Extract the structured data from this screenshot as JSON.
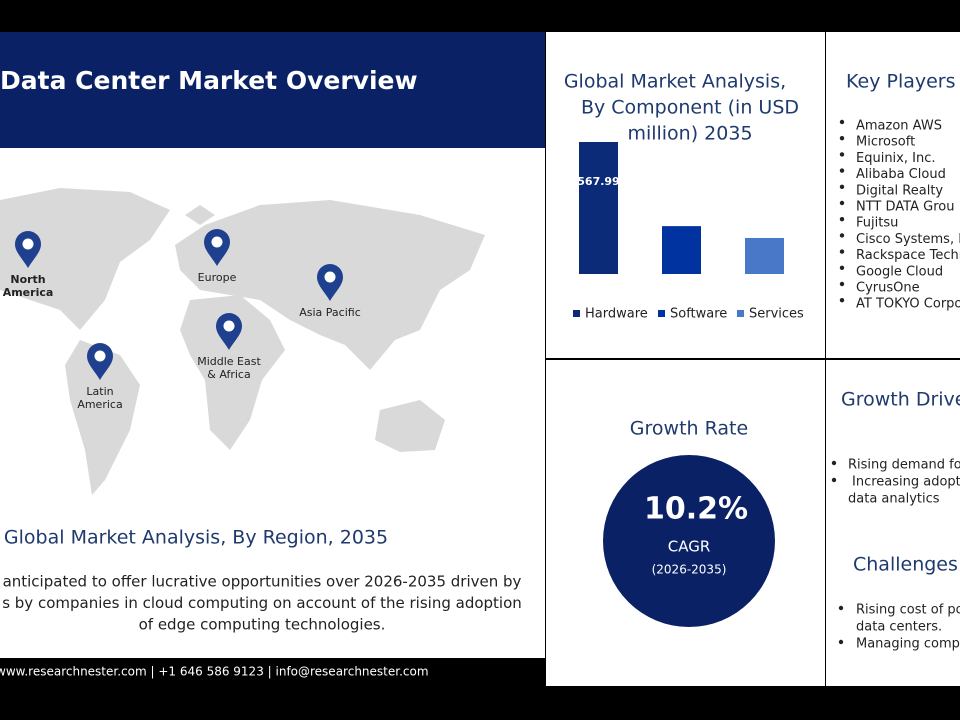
{
  "header": {
    "title": "Data Center Market Overview"
  },
  "regions": {
    "title": "Global Market Analysis, By Region, 2035",
    "pins": [
      {
        "label": [
          "North",
          "America"
        ]
      },
      {
        "label": [
          "Europe"
        ]
      },
      {
        "label": [
          "Asia Pacific"
        ]
      },
      {
        "label": [
          "Middle East",
          "& Africa"
        ]
      },
      {
        "label": [
          "Latin",
          "America"
        ]
      }
    ],
    "paragraph": [
      "anticipated to offer lucrative opportunities over 2026-2035 driven by",
      "s by companies in cloud computing on account of the rising adoption",
      "of edge computing technologies."
    ]
  },
  "footer": {
    "text": "www.researchnester.com  | +1 646 586 9123 | info@researchnester.com"
  },
  "chart_data": {
    "type": "bar",
    "title": [
      "Global Market Analysis,",
      "By Component (in USD",
      "million) 2035"
    ],
    "categories": [
      "Hardware",
      "Software",
      "Services"
    ],
    "values": [
      567.99,
      206,
      155
    ],
    "colors": [
      "#0b2a78",
      "#0033a0",
      "#4a78c8"
    ],
    "data_labels": [
      true,
      false,
      false
    ]
  },
  "growth_rate": {
    "title": "Growth Rate",
    "value": "10.2%",
    "label": "CAGR",
    "period": "(2026-2035)"
  },
  "key_players": {
    "title": "Key Players i",
    "items": [
      "Amazon AWS",
      "Microsoft",
      "Equinix, Inc.",
      "Alibaba Cloud",
      "Digital Realty",
      "NTT DATA Grou",
      "Fujitsu",
      "Cisco Systems, In",
      "Rackspace Techn",
      "Google Cloud",
      "CyrusOne",
      "AT TOKYO Corpo"
    ]
  },
  "growth_drivers": {
    "title": "Growth Drive",
    "items": [
      [
        "Rising demand fo"
      ],
      [
        "Increasing adoptio",
        "data analytics"
      ]
    ]
  },
  "challenges": {
    "title": "Challenges",
    "items": [
      [
        "Rising cost of po",
        "data centers."
      ],
      [
        "Managing compl"
      ]
    ]
  }
}
